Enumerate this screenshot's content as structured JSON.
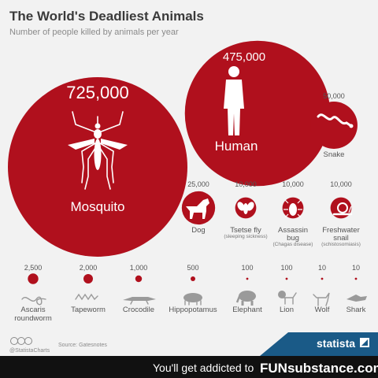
{
  "header": {
    "title": "The World's Deadliest Animals",
    "subtitle": "Number of people killed by animals per year"
  },
  "chart_data": {
    "type": "bubble",
    "title": "The World's Deadliest Animals",
    "subtitle": "Number of people killed by animals per year",
    "unit": "people killed per year",
    "items": [
      {
        "name": "Mosquito",
        "value": 725000,
        "label": "725,000",
        "icon": "mosquito-icon"
      },
      {
        "name": "Human",
        "value": 475000,
        "label": "475,000",
        "icon": "human-icon"
      },
      {
        "name": "Snake",
        "value": 50000,
        "label": "50,000",
        "icon": "snake-icon"
      },
      {
        "name": "Dog",
        "value": 25000,
        "label": "25,000",
        "icon": "dog-icon"
      },
      {
        "name": "Tsetse fly",
        "value": 10000,
        "label": "10,000",
        "note": "(sleeping sickness)",
        "icon": "tsetse-fly-icon"
      },
      {
        "name": "Assassin bug",
        "name_lines": [
          "Assassin",
          "bug"
        ],
        "value": 10000,
        "label": "10,000",
        "note": "(Chagas disease)",
        "icon": "assassin-bug-icon"
      },
      {
        "name": "Freshwater snail",
        "name_lines": [
          "Freshwater",
          "snail"
        ],
        "value": 10000,
        "label": "10,000",
        "note": "(schistosomiasis)",
        "icon": "snail-icon"
      },
      {
        "name": "Ascaris roundworm",
        "name_lines": [
          "Ascaris",
          "roundworm"
        ],
        "value": 2500,
        "label": "2,500",
        "icon": "roundworm-icon"
      },
      {
        "name": "Tapeworm",
        "value": 2000,
        "label": "2,000",
        "icon": "tapeworm-icon"
      },
      {
        "name": "Crocodile",
        "value": 1000,
        "label": "1,000",
        "icon": "crocodile-icon"
      },
      {
        "name": "Hippopotamus",
        "value": 500,
        "label": "500",
        "icon": "hippopotamus-icon"
      },
      {
        "name": "Elephant",
        "value": 100,
        "label": "100",
        "icon": "elephant-icon"
      },
      {
        "name": "Lion",
        "value": 100,
        "label": "100",
        "icon": "lion-icon"
      },
      {
        "name": "Wolf",
        "value": 10,
        "label": "10",
        "icon": "wolf-icon"
      },
      {
        "name": "Shark",
        "value": 10,
        "label": "10",
        "icon": "shark-icon"
      }
    ]
  },
  "colors": {
    "bubble": "#b0101d",
    "bubble_dark": "#8e0c17",
    "background": "#f2f2f2",
    "statista_blue": "#1a5a87",
    "banner": "#111111",
    "gray_icon": "#9a9a9a"
  },
  "footer": {
    "handle": "@StatistaCharts",
    "source": "Source: Gatesnotes",
    "cc_icon": "creative-commons-icon",
    "brand": "statista",
    "brand_icon": "statista-logo-icon"
  },
  "banner": {
    "text": "You'll get addicted to",
    "brand": "FUNsubstance.com"
  }
}
